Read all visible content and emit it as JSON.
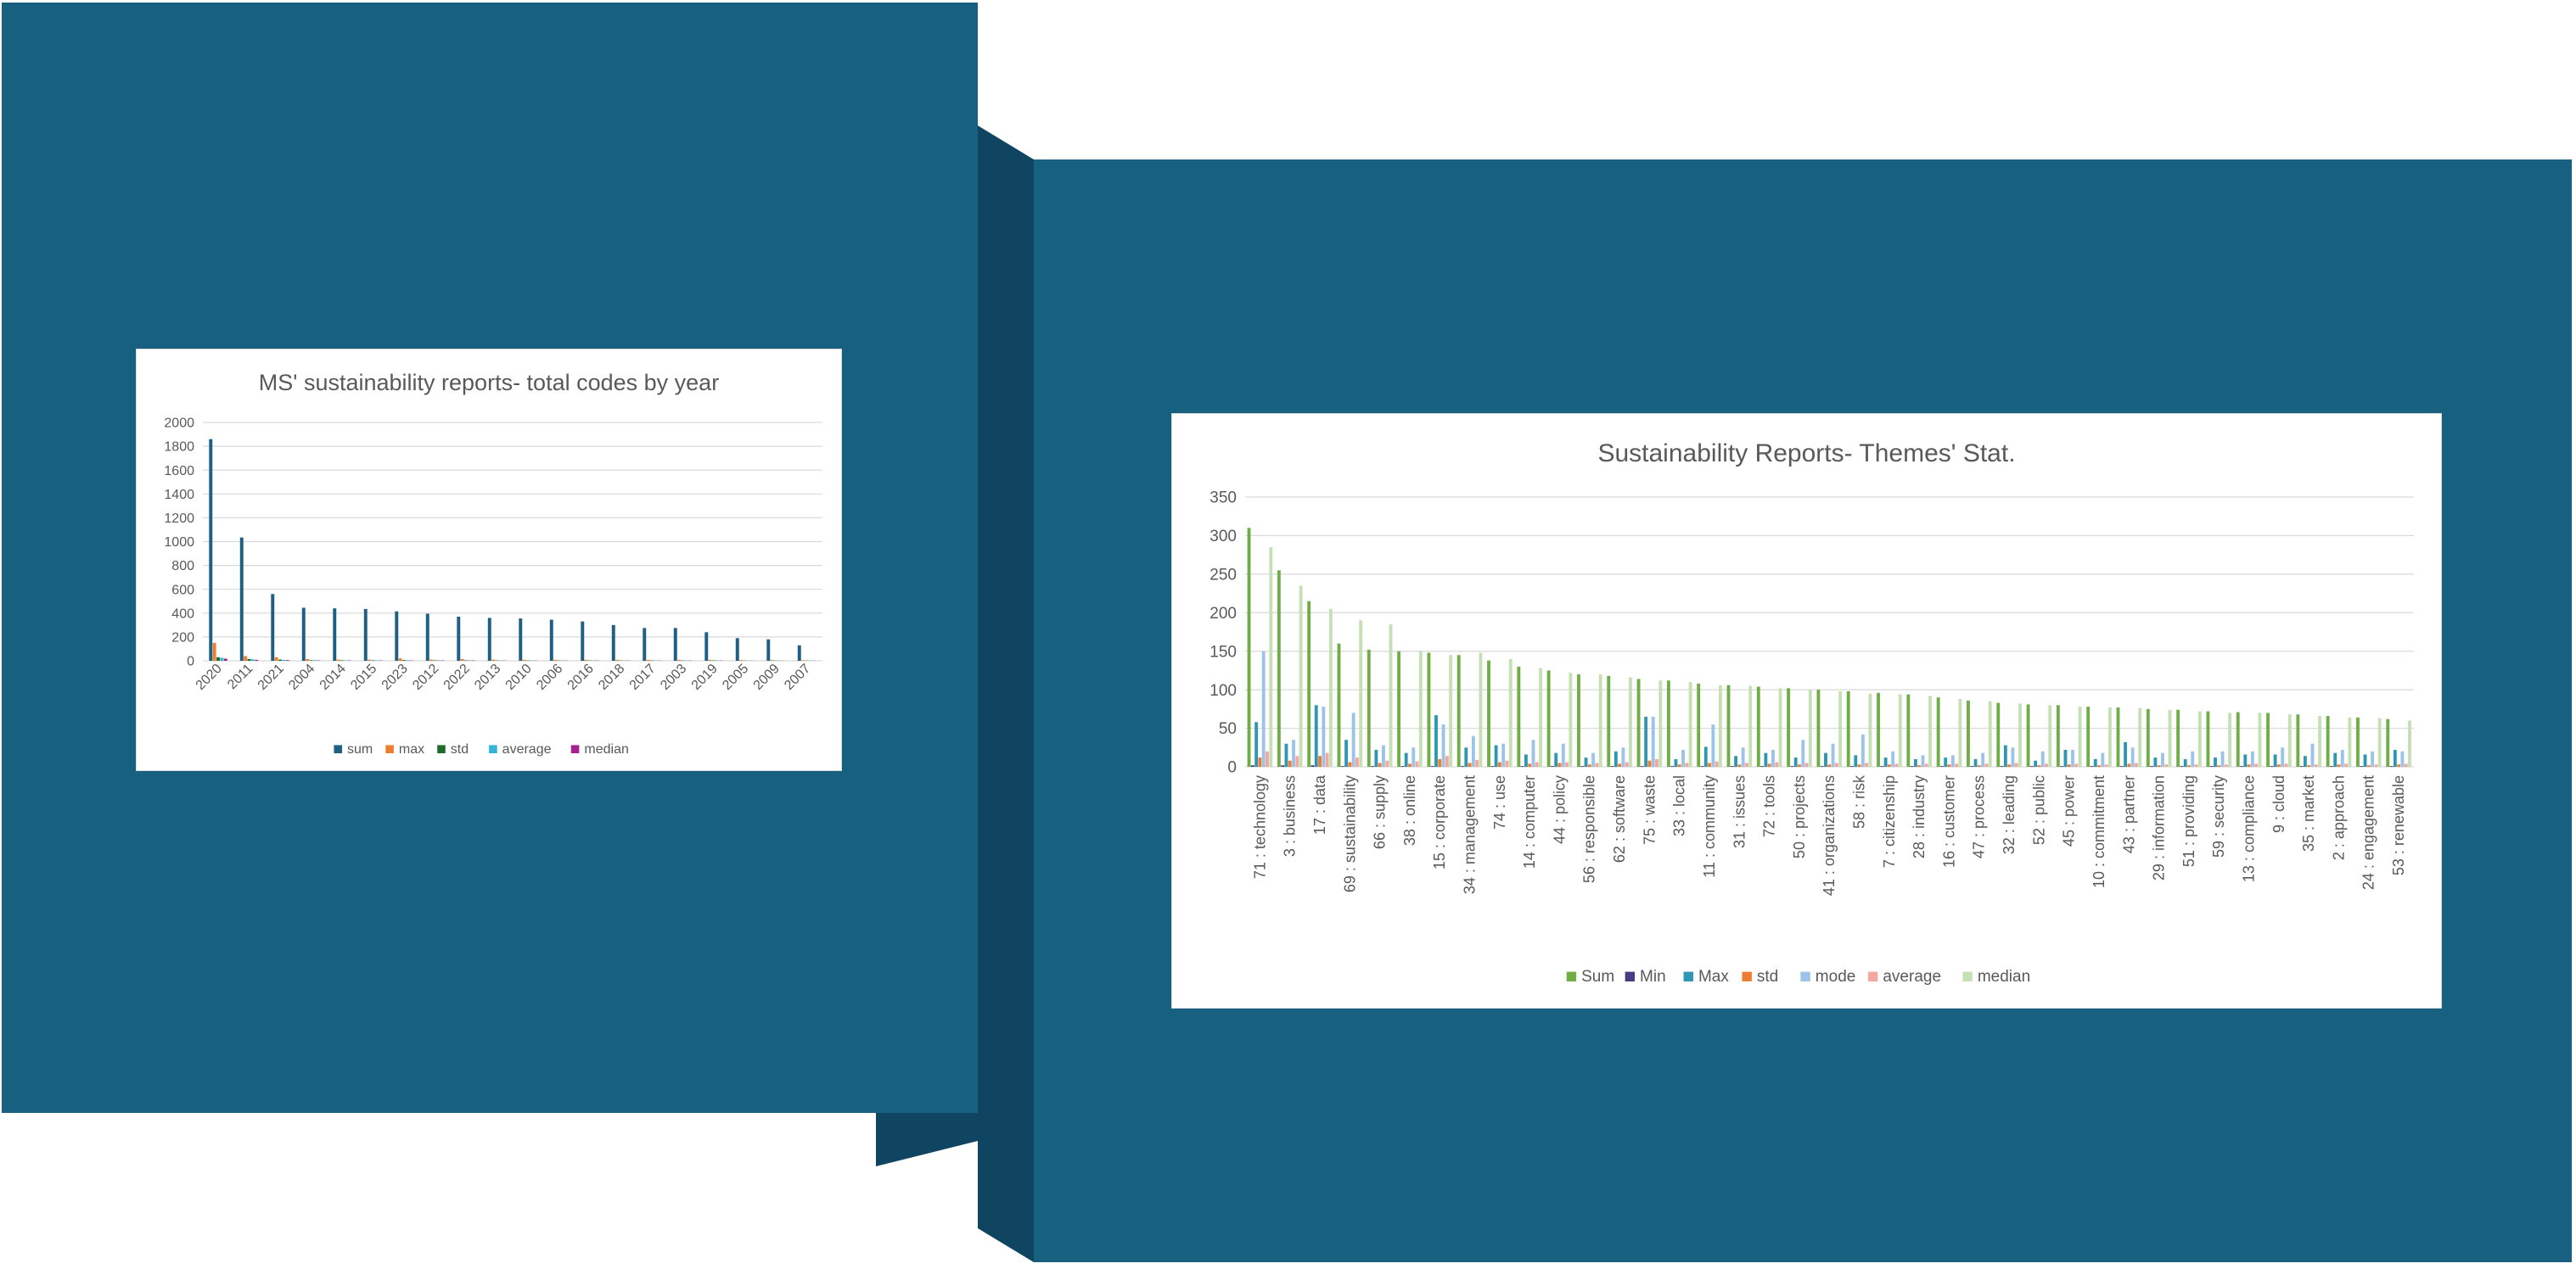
{
  "colors": {
    "panel_primary": "#17607f",
    "panel_shadow": "#0f4560",
    "gridline": "#d9d9d9",
    "text": "#595959"
  },
  "chart_data": [
    {
      "type": "bar",
      "title": "MS' sustainability reports- total codes by year",
      "categories": [
        "2020",
        "2011",
        "2021",
        "2004",
        "2014",
        "2015",
        "2023",
        "2012",
        "2022",
        "2013",
        "2010",
        "2006",
        "2016",
        "2018",
        "2017",
        "2003",
        "2019",
        "2005",
        "2009",
        "2007"
      ],
      "ylim": [
        0,
        2000
      ],
      "yticks": [
        0,
        200,
        400,
        600,
        800,
        1000,
        1200,
        1400,
        1600,
        1800,
        2000
      ],
      "grid": true,
      "legend_position": "bottom",
      "series": [
        {
          "name": "sum",
          "color": "#1f5f84",
          "values": [
            1860,
            1035,
            560,
            445,
            440,
            435,
            415,
            395,
            370,
            360,
            355,
            345,
            330,
            300,
            275,
            275,
            240,
            190,
            180,
            130
          ]
        },
        {
          "name": "max",
          "color": "#ed7d31",
          "values": [
            150,
            40,
            30,
            15,
            10,
            10,
            20,
            10,
            15,
            10,
            8,
            8,
            8,
            8,
            8,
            8,
            8,
            6,
            6,
            5
          ]
        },
        {
          "name": "std",
          "color": "#1e6b2a",
          "values": [
            30,
            15,
            10,
            5,
            4,
            4,
            6,
            4,
            4,
            3,
            3,
            3,
            3,
            3,
            3,
            3,
            3,
            2,
            2,
            2
          ]
        },
        {
          "name": "average",
          "color": "#33b5d6",
          "values": [
            25,
            12,
            8,
            5,
            4,
            4,
            5,
            4,
            4,
            3,
            3,
            3,
            3,
            3,
            3,
            3,
            3,
            2,
            2,
            2
          ]
        },
        {
          "name": "median",
          "color": "#a6218f",
          "values": [
            18,
            8,
            6,
            3,
            3,
            3,
            3,
            3,
            3,
            2,
            2,
            2,
            2,
            2,
            2,
            2,
            2,
            1,
            1,
            1
          ]
        }
      ]
    },
    {
      "type": "bar",
      "title": "Sustainability Reports- Themes' Stat.",
      "categories": [
        "71 : technology",
        "3 : business",
        "17 : data",
        "69 : sustainability",
        "66 : supply",
        "38 : online",
        "15 : corporate",
        "34 : management",
        "74 : use",
        "14 : computer",
        "44 : policy",
        "56 : responsible",
        "62 : software",
        "75 : waste",
        "33 : local",
        "11 : community",
        "31 : issues",
        "72 : tools",
        "50 : projects",
        "41 : organizations",
        "58 : risk",
        "7 : citizenship",
        "28 : industry",
        "16 : customer",
        "47 : process",
        "32 : leading",
        "52 : public",
        "45 : power",
        "10 : commitment",
        "43 : partner",
        "29 : information",
        "51 : providing",
        "59 : security",
        "13 : compliance",
        "9 : cloud",
        "35 : market",
        "2 : approach",
        "24 : engagement",
        "53 : renewable"
      ],
      "ylim": [
        0,
        350
      ],
      "yticks": [
        0,
        50,
        100,
        150,
        200,
        250,
        300,
        350
      ],
      "grid": true,
      "legend_position": "bottom",
      "series": [
        {
          "name": "Sum",
          "color": "#70ad47",
          "values": [
            310,
            255,
            215,
            160,
            152,
            150,
            148,
            145,
            138,
            130,
            125,
            120,
            118,
            114,
            112,
            108,
            106,
            104,
            102,
            100,
            98,
            96,
            94,
            90,
            86,
            83,
            81,
            80,
            78,
            77,
            75,
            74,
            72,
            71,
            70,
            68,
            66,
            64,
            62
          ]
        },
        {
          "name": "Min",
          "color": "#4a3c80",
          "values": [
            2,
            2,
            2,
            1,
            1,
            1,
            1,
            1,
            1,
            1,
            1,
            1,
            1,
            1,
            1,
            1,
            1,
            1,
            1,
            1,
            1,
            1,
            1,
            1,
            1,
            1,
            1,
            1,
            1,
            1,
            1,
            1,
            1,
            1,
            1,
            1,
            1,
            1,
            1
          ]
        },
        {
          "name": "Max",
          "color": "#2f96b4",
          "values": [
            58,
            30,
            80,
            35,
            22,
            18,
            67,
            25,
            28,
            16,
            18,
            12,
            20,
            65,
            10,
            26,
            14,
            18,
            12,
            18,
            15,
            12,
            10,
            12,
            10,
            28,
            8,
            22,
            10,
            32,
            12,
            10,
            12,
            16,
            16,
            14,
            18,
            16,
            22
          ]
        },
        {
          "name": "std",
          "color": "#ed7d31",
          "values": [
            12,
            8,
            14,
            6,
            5,
            4,
            10,
            5,
            6,
            4,
            5,
            3,
            4,
            8,
            3,
            5,
            3,
            4,
            3,
            3,
            3,
            3,
            2,
            3,
            2,
            3,
            2,
            3,
            2,
            4,
            2,
            2,
            2,
            3,
            3,
            2,
            3,
            2,
            3
          ]
        },
        {
          "name": "mode",
          "color": "#9dc3e6",
          "values": [
            150,
            35,
            78,
            70,
            28,
            25,
            55,
            40,
            30,
            35,
            30,
            18,
            25,
            65,
            22,
            55,
            25,
            22,
            35,
            30,
            42,
            20,
            15,
            15,
            18,
            25,
            20,
            22,
            18,
            25,
            18,
            20,
            20,
            20,
            25,
            30,
            22,
            20,
            20
          ]
        },
        {
          "name": "average",
          "color": "#f4a6a0",
          "values": [
            20,
            14,
            18,
            12,
            8,
            7,
            14,
            9,
            8,
            6,
            6,
            5,
            6,
            10,
            5,
            7,
            5,
            6,
            5,
            5,
            5,
            4,
            4,
            4,
            4,
            5,
            4,
            4,
            3,
            5,
            3,
            3,
            3,
            4,
            4,
            3,
            4,
            3,
            4
          ]
        },
        {
          "name": "median",
          "color": "#c5e0b4",
          "values": [
            285,
            235,
            205,
            190,
            185,
            150,
            145,
            148,
            140,
            128,
            122,
            120,
            116,
            112,
            110,
            106,
            105,
            102,
            100,
            98,
            95,
            94,
            92,
            88,
            85,
            82,
            80,
            78,
            77,
            76,
            74,
            72,
            70,
            70,
            68,
            66,
            64,
            63,
            60
          ]
        }
      ]
    }
  ]
}
